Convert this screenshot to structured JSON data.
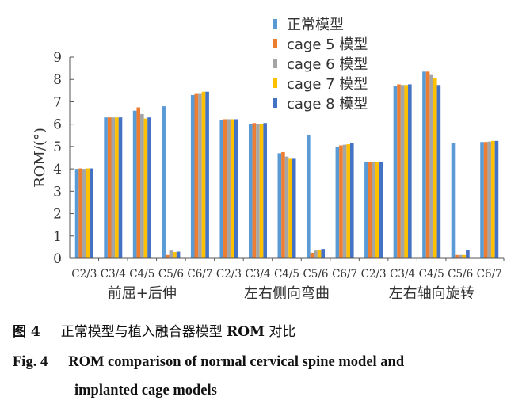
{
  "chart_data": {
    "type": "bar",
    "ylabel": "ROM/(°)",
    "ylim": [
      0,
      9
    ],
    "yticks": [
      "0",
      "1",
      "2",
      "3",
      "4",
      "5",
      "6",
      "7",
      "8",
      "9"
    ],
    "categories": [
      "C2/3",
      "C3/4",
      "C4/5",
      "C5/6",
      "C6/7",
      "C2/3",
      "C3/4",
      "C4/5",
      "C5/6",
      "C6/7",
      "C2/3",
      "C3/4",
      "C4/5",
      "C5/6",
      "C6/7"
    ],
    "groups": [
      "前屈+后伸",
      "左右侧向弯曲",
      "左右轴向旋转"
    ],
    "series": [
      {
        "name": "正常模型",
        "color": "#5B9BD5",
        "values": [
          4.0,
          6.3,
          6.6,
          6.8,
          7.3,
          6.2,
          6.0,
          4.7,
          5.5,
          5.0,
          4.3,
          7.7,
          8.35,
          5.15,
          5.2
        ]
      },
      {
        "name": "cage 5 模型",
        "color": "#ED7D31",
        "values": [
          4.02,
          6.3,
          6.75,
          0.15,
          7.35,
          6.22,
          6.05,
          4.75,
          0.25,
          5.05,
          4.32,
          7.78,
          8.35,
          0.15,
          5.2
        ]
      },
      {
        "name": "cage 6 模型",
        "color": "#A5A5A5",
        "values": [
          4.0,
          6.3,
          6.45,
          0.35,
          7.35,
          6.22,
          6.02,
          4.55,
          0.35,
          5.08,
          4.3,
          7.75,
          8.2,
          0.15,
          5.22
        ]
      },
      {
        "name": "cage 7 模型",
        "color": "#FFC000",
        "values": [
          4.02,
          6.3,
          6.25,
          0.28,
          7.45,
          6.22,
          6.02,
          4.45,
          0.38,
          5.1,
          4.32,
          7.75,
          8.05,
          0.15,
          5.25
        ]
      },
      {
        "name": "cage 8 模型",
        "color": "#4472C4",
        "values": [
          4.02,
          6.3,
          6.3,
          0.3,
          7.45,
          6.22,
          6.05,
          4.45,
          0.42,
          5.15,
          4.32,
          7.78,
          7.75,
          0.38,
          5.25
        ]
      }
    ]
  },
  "caption": {
    "cn_label": "图 4",
    "cn_text": "正常模型与植入融合器模型",
    "cn_bold": "ROM",
    "cn_tail": "对比",
    "en_label": "Fig. 4",
    "en_line1": "ROM comparison of normal cervical spine model and",
    "en_line2": "implanted cage models"
  }
}
